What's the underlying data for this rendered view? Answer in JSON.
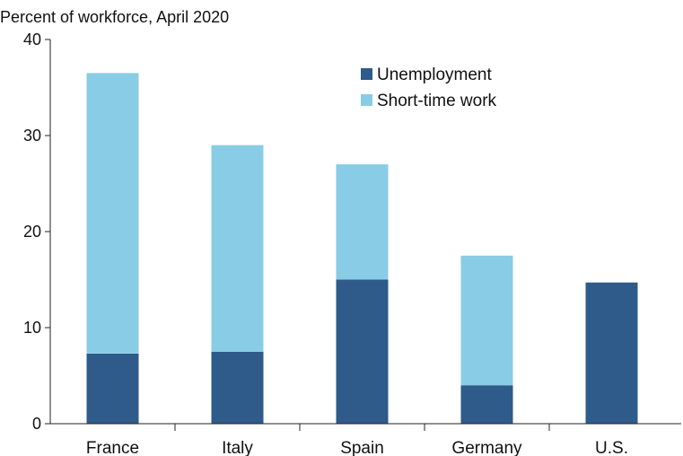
{
  "chart_data": {
    "type": "bar",
    "stacked": true,
    "title": "",
    "ylabel": "Percent of workforce, April 2020",
    "xlabel": "",
    "ylim": [
      0,
      40
    ],
    "yticks": [
      0,
      10,
      20,
      30,
      40
    ],
    "grid": false,
    "legend_position": "top-right",
    "categories": [
      "France",
      "Italy",
      "Spain",
      "Germany",
      "U.S."
    ],
    "series": [
      {
        "name": "Unemployment",
        "color": "#2e5b8a",
        "values": [
          7.3,
          7.5,
          15.0,
          4.0,
          14.7
        ]
      },
      {
        "name": "Short-time work",
        "color": "#89cce6",
        "values": [
          29.2,
          21.5,
          12.0,
          13.5,
          0
        ]
      }
    ]
  }
}
